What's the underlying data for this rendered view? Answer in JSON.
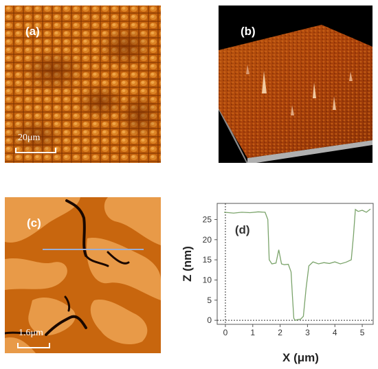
{
  "figure": {
    "panel_a": {
      "label": "(a)",
      "scale": "20μm"
    },
    "panel_b": {
      "label": "(b)"
    },
    "panel_c": {
      "label": "(c)",
      "scale": "1.6μm"
    },
    "panel_d": {
      "label": "(d)"
    }
  },
  "colors": {
    "afm_dark": "#8a3a00",
    "afm_mid": "#c86410",
    "afm_light": "#e89a3a",
    "profile_line": "#7aa36a",
    "cut_line": "#9aaed6"
  },
  "chart_data": {
    "type": "line",
    "title": "",
    "xlabel": "X (μm)",
    "ylabel": "Z (nm)",
    "xlim": [
      -0.3,
      5.4
    ],
    "ylim": [
      -1,
      29
    ],
    "xticks": [
      "0",
      "1",
      "2",
      "3",
      "4",
      "5"
    ],
    "yticks": [
      "0",
      "5",
      "10",
      "15",
      "20",
      "25"
    ],
    "series": [
      {
        "name": "",
        "x": [
          -0.05,
          0.3,
          0.6,
          0.9,
          1.2,
          1.45,
          1.55,
          1.6,
          1.7,
          1.85,
          1.95,
          2.05,
          2.15,
          2.3,
          2.4,
          2.45,
          2.5,
          2.55,
          2.65,
          2.75,
          2.85,
          2.95,
          3.05,
          3.2,
          3.4,
          3.6,
          3.8,
          4.0,
          4.2,
          4.4,
          4.6,
          4.68,
          4.75,
          4.85,
          5.0,
          5.15,
          5.3
        ],
        "y": [
          26.8,
          26.6,
          26.8,
          26.7,
          26.9,
          26.8,
          25.0,
          15.0,
          14.0,
          14.2,
          17.5,
          14.0,
          13.8,
          13.9,
          12.0,
          6.0,
          0.5,
          0.0,
          0.2,
          0.3,
          1.0,
          8.0,
          13.5,
          14.5,
          14.0,
          14.3,
          14.1,
          14.5,
          14.0,
          14.4,
          15.0,
          21.0,
          27.5,
          27.0,
          27.3,
          26.8,
          27.6
        ]
      }
    ]
  }
}
